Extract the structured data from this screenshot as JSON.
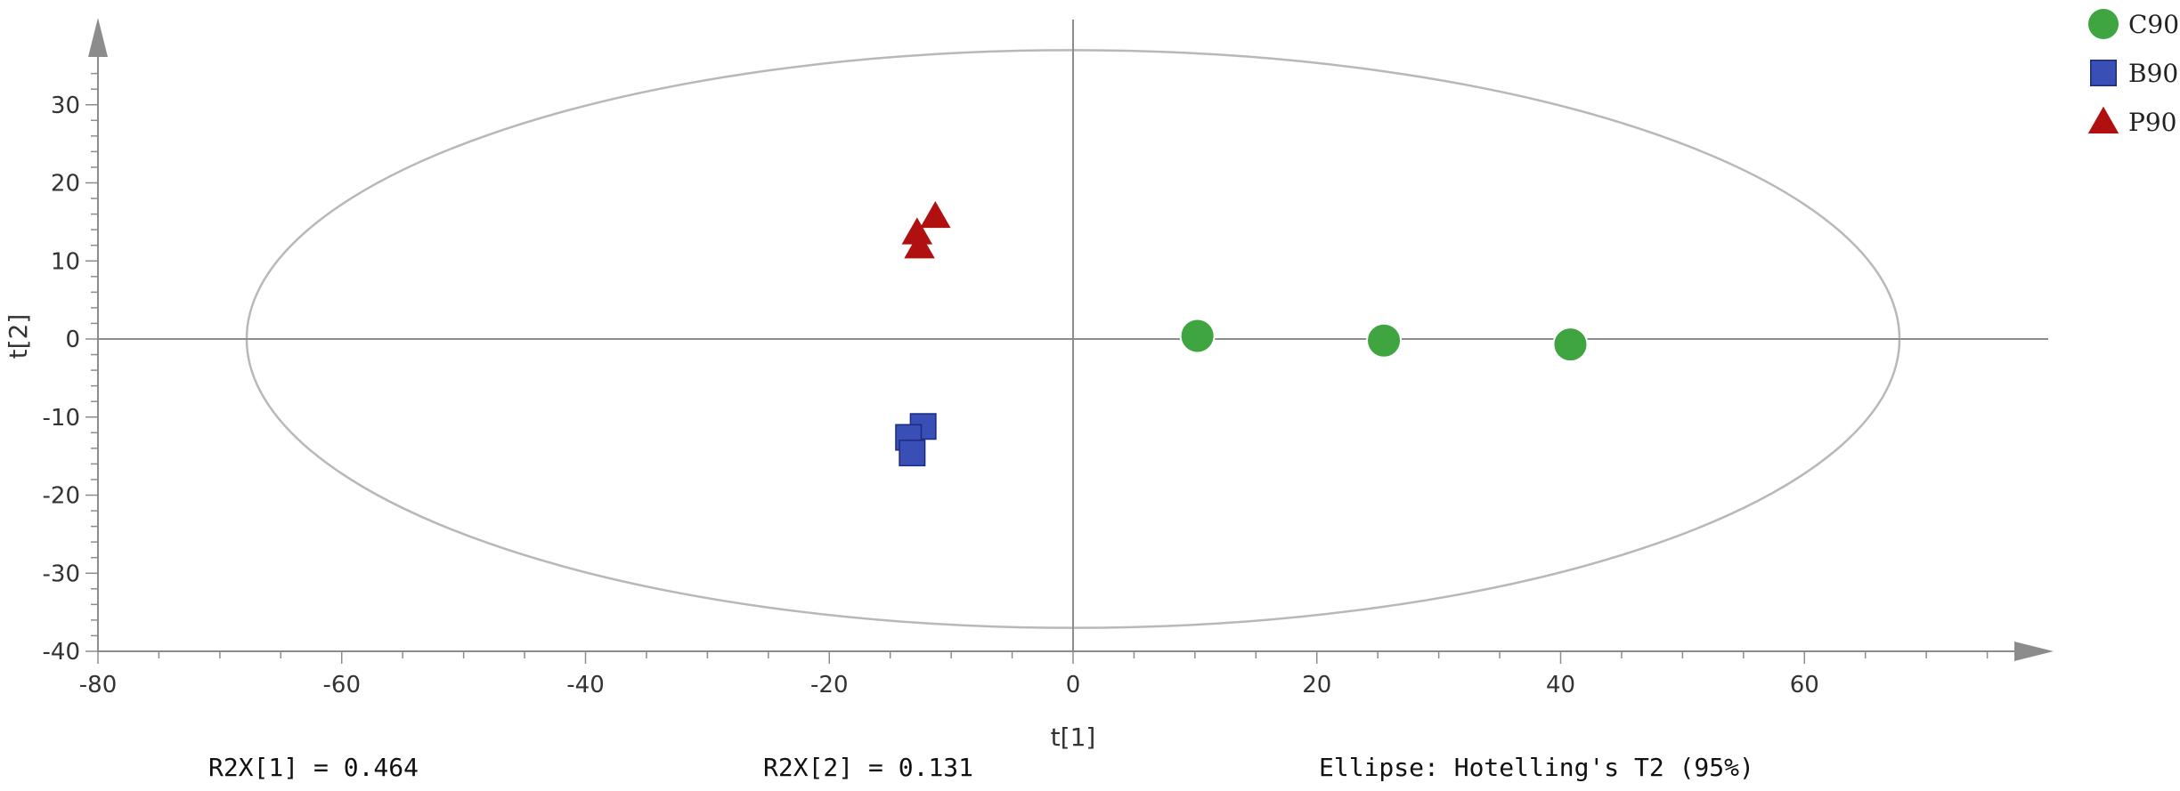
{
  "chart_data": {
    "type": "scatter",
    "title": "",
    "xlabel": "t[1]",
    "ylabel": "t[2]",
    "xlim": [
      -80,
      80
    ],
    "ylim": [
      -40,
      40
    ],
    "xticks": [
      -80,
      -60,
      -40,
      -20,
      0,
      20,
      40,
      60
    ],
    "yticks": [
      -40,
      -30,
      -20,
      -10,
      0,
      10,
      20,
      30
    ],
    "grid": false,
    "legend_position": "top-right",
    "series": [
      {
        "name": "C90",
        "marker": "circle",
        "color": "#3ea540",
        "points": [
          [
            10.2,
            0.4
          ],
          [
            25.5,
            -0.2
          ],
          [
            40.8,
            -0.7
          ]
        ]
      },
      {
        "name": "B90",
        "marker": "square",
        "color": "#3a4fb5",
        "points": [
          [
            -12.3,
            -11.2
          ],
          [
            -13.5,
            -12.6
          ],
          [
            -13.2,
            -14.6
          ]
        ]
      },
      {
        "name": "P90",
        "marker": "triangle",
        "color": "#b01010",
        "points": [
          [
            -11.3,
            15.7
          ],
          [
            -12.8,
            13.6
          ],
          [
            -12.6,
            11.8
          ]
        ]
      }
    ],
    "ellipse": {
      "center": [
        0,
        0
      ],
      "semi_axis_x": 67.8,
      "semi_axis_y": 37.0,
      "color": "#b8b8b8"
    },
    "annotations": {
      "r2x1": "R2X[1] = 0.464",
      "r2x2": "R2X[2] = 0.131",
      "ellipse_note": "Ellipse: Hotelling's T2 (95%)"
    }
  }
}
